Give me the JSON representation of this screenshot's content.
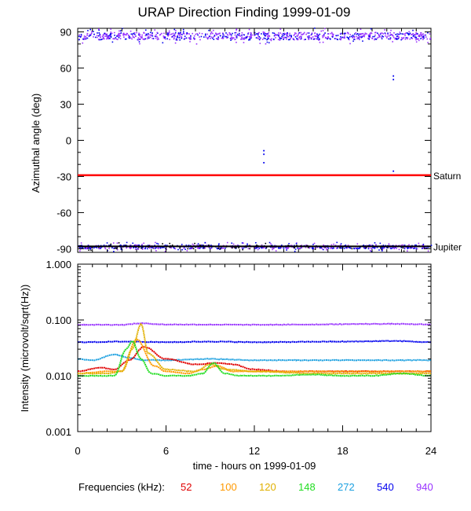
{
  "title": "URAP Direction Finding  1999-01-09",
  "frequencies_label": "Frequencies (kHz):",
  "frequencies": [
    {
      "label": "52",
      "color": "#e00000"
    },
    {
      "label": "100",
      "color": "#ff9900"
    },
    {
      "label": "120",
      "color": "#e0b000"
    },
    {
      "label": "148",
      "color": "#22dd22"
    },
    {
      "label": "272",
      "color": "#1ca0e0"
    },
    {
      "label": "540",
      "color": "#0000ee"
    },
    {
      "label": "940",
      "color": "#9933ff"
    }
  ],
  "chart_data": [
    {
      "type": "scatter",
      "ylabel": "Azimuthal angle (deg)",
      "xlim": [
        0,
        24
      ],
      "ylim": [
        -93,
        93
      ],
      "y_ticks": [
        "90",
        "60",
        "30",
        "0",
        "-30",
        "-60",
        "-90"
      ],
      "y_tick_values": [
        90,
        60,
        30,
        0,
        -30,
        -60,
        -90
      ],
      "reference_lines": [
        {
          "label": "Saturn",
          "y": -29,
          "color": "#ff0000"
        },
        {
          "label": "Jupiter",
          "y": -88,
          "color": "#000000"
        }
      ],
      "scatter_bands": [
        {
          "series": "940",
          "y_center": 87,
          "y_spread": 6
        },
        {
          "series": "540",
          "y_center": -88,
          "y_spread": 3
        }
      ],
      "outliers": [
        {
          "x": 12.6,
          "y": -8
        },
        {
          "x": 12.6,
          "y": -11
        },
        {
          "x": 12.6,
          "y": -18
        },
        {
          "x": 21.4,
          "y": 51
        },
        {
          "x": 21.4,
          "y": 54
        },
        {
          "x": 21.4,
          "y": -25
        }
      ]
    },
    {
      "type": "line",
      "ylabel": "Intensity (microvolt/sqrt(Hz))",
      "xlabel": "time - hours on 1999-01-09",
      "yscale": "log",
      "xlim": [
        0,
        24
      ],
      "ylim": [
        0.001,
        1.0
      ],
      "x_ticks": [
        "0",
        "6",
        "12",
        "18",
        "24"
      ],
      "x_tick_values": [
        0,
        6,
        12,
        18,
        24
      ],
      "y_ticks": [
        "1.000",
        "0.100",
        "0.010",
        "0.001"
      ],
      "y_tick_values": [
        1.0,
        0.1,
        0.01,
        0.001
      ],
      "series": [
        {
          "name": "940",
          "x": [
            0,
            3,
            4.3,
            6,
            12,
            21.5,
            24
          ],
          "values": [
            0.082,
            0.082,
            0.087,
            0.083,
            0.082,
            0.085,
            0.083
          ]
        },
        {
          "name": "540",
          "x": [
            0,
            3.5,
            6,
            9,
            12,
            18,
            21.5,
            24
          ],
          "values": [
            0.04,
            0.041,
            0.04,
            0.041,
            0.04,
            0.041,
            0.042,
            0.04
          ]
        },
        {
          "name": "272",
          "x": [
            0,
            1,
            2.5,
            3.5,
            4.5,
            6,
            9,
            12,
            15,
            18,
            21,
            24
          ],
          "values": [
            0.02,
            0.019,
            0.024,
            0.021,
            0.019,
            0.019,
            0.02,
            0.019,
            0.019,
            0.019,
            0.019,
            0.019
          ]
        },
        {
          "name": "52",
          "x": [
            0,
            1.5,
            2.5,
            3.5,
            4.5,
            6,
            8,
            9.5,
            10.5,
            12,
            14,
            16,
            20,
            24
          ],
          "values": [
            0.012,
            0.014,
            0.013,
            0.019,
            0.033,
            0.02,
            0.016,
            0.017,
            0.016,
            0.013,
            0.012,
            0.012,
            0.012,
            0.012
          ]
        },
        {
          "name": "100",
          "x": [
            0,
            2,
            3,
            4,
            5.2,
            6,
            7.5,
            8.5,
            9.5,
            10.5,
            12,
            16,
            20,
            24
          ],
          "values": [
            0.011,
            0.012,
            0.012,
            0.045,
            0.015,
            0.012,
            0.011,
            0.013,
            0.015,
            0.012,
            0.012,
            0.012,
            0.012,
            0.012
          ]
        },
        {
          "name": "120",
          "x": [
            0,
            2,
            3,
            3.7,
            4.3,
            4.8,
            6,
            8,
            9,
            10,
            12,
            16,
            20,
            24
          ],
          "values": [
            0.011,
            0.011,
            0.012,
            0.03,
            0.085,
            0.025,
            0.013,
            0.012,
            0.016,
            0.013,
            0.012,
            0.011,
            0.011,
            0.011
          ]
        },
        {
          "name": "148",
          "x": [
            0,
            1,
            2.5,
            3.3,
            3.7,
            4.3,
            5,
            6,
            7.5,
            8.5,
            9.2,
            10,
            11,
            13,
            16,
            18,
            20,
            22,
            24
          ],
          "values": [
            0.01,
            0.01,
            0.01,
            0.03,
            0.042,
            0.02,
            0.011,
            0.01,
            0.01,
            0.011,
            0.017,
            0.011,
            0.01,
            0.01,
            0.0105,
            0.01,
            0.01,
            0.011,
            0.01
          ]
        }
      ]
    }
  ]
}
